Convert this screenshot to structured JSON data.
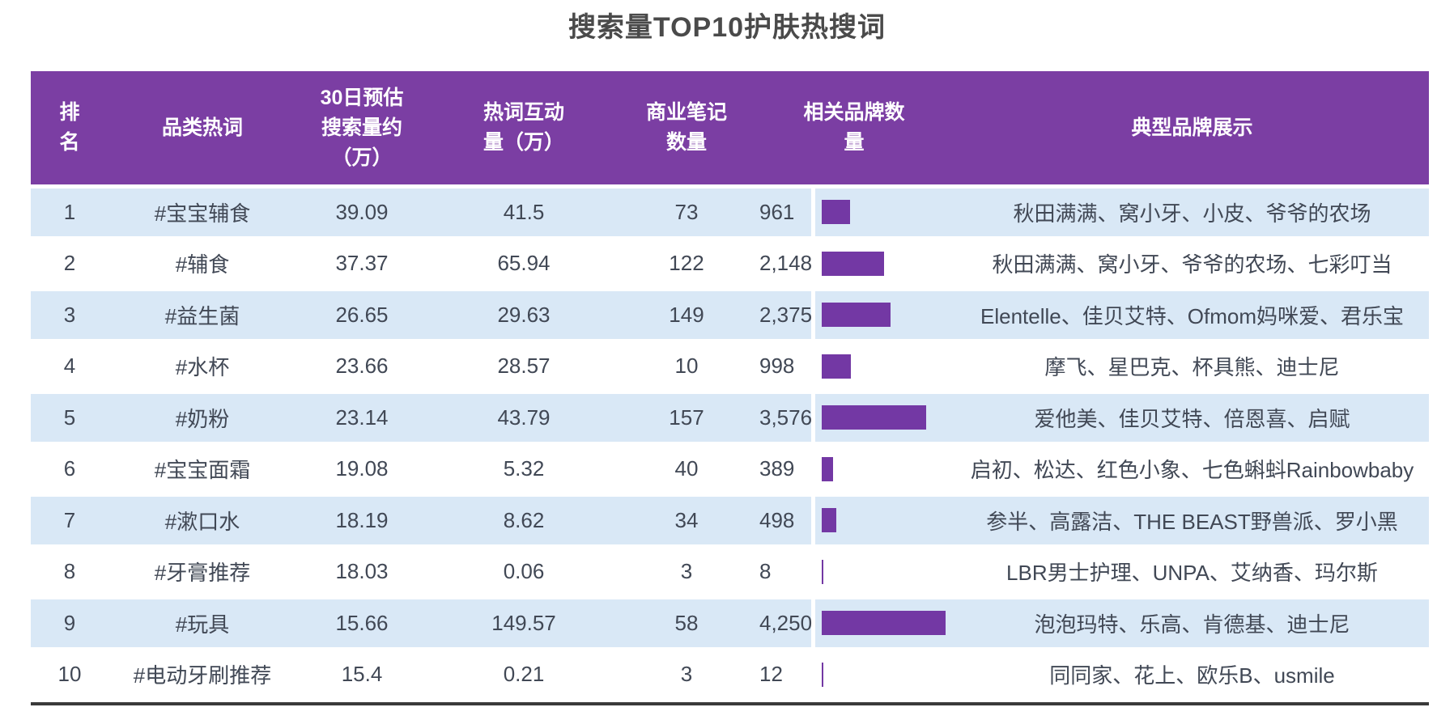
{
  "title": "搜索量TOP10护肤热搜词",
  "colors": {
    "header_bg": "#7b3ea3",
    "bar": "#7338a4",
    "row_alt": "#d9e8f6",
    "row": "#ffffff",
    "text": "#414855",
    "title_text": "#4a4a4a",
    "bottom_rule": "#3a3a3a"
  },
  "table": {
    "columns": [
      {
        "label": "排\n名"
      },
      {
        "label": "品类热词"
      },
      {
        "label": "30日预估\n搜索量约\n（万）"
      },
      {
        "label": "热词互动\n量（万）"
      },
      {
        "label": "商业笔记\n数量"
      },
      {
        "label": "相关品牌数\n量"
      },
      {
        "label": "典型品牌展示"
      }
    ],
    "rows": [
      {
        "rank": "1",
        "keyword": "#宝宝辅食",
        "search_volume": "39.09",
        "interaction": "41.5",
        "notes": "73",
        "brand_count": "961",
        "brands": "秋田满满、窝小牙、小皮、爷爷的农场"
      },
      {
        "rank": "2",
        "keyword": "#辅食",
        "search_volume": "37.37",
        "interaction": "65.94",
        "notes": "122",
        "brand_count": "2,148",
        "brands": "秋田满满、窝小牙、爷爷的农场、七彩叮当"
      },
      {
        "rank": "3",
        "keyword": "#益生菌",
        "search_volume": "26.65",
        "interaction": "29.63",
        "notes": "149",
        "brand_count": "2,375",
        "brands": "Elentelle、佳贝艾特、Ofmom妈咪爱、君乐宝"
      },
      {
        "rank": "4",
        "keyword": "#水杯",
        "search_volume": "23.66",
        "interaction": "28.57",
        "notes": "10",
        "brand_count": "998",
        "brands": "摩飞、星巴克、杯具熊、迪士尼"
      },
      {
        "rank": "5",
        "keyword": "#奶粉",
        "search_volume": "23.14",
        "interaction": "43.79",
        "notes": "157",
        "brand_count": "3,576",
        "brands": "爱他美、佳贝艾特、倍恩喜、启赋"
      },
      {
        "rank": "6",
        "keyword": "#宝宝面霜",
        "search_volume": "19.08",
        "interaction": "5.32",
        "notes": "40",
        "brand_count": "389",
        "brands": "启初、松达、红色小象、七色蝌蚪Rainbowbaby"
      },
      {
        "rank": "7",
        "keyword": "#漱口水",
        "search_volume": "18.19",
        "interaction": "8.62",
        "notes": "34",
        "brand_count": "498",
        "brands": "参半、高露洁、THE BEAST野兽派、罗小黑"
      },
      {
        "rank": "8",
        "keyword": "#牙膏推荐",
        "search_volume": "18.03",
        "interaction": "0.06",
        "notes": "3",
        "brand_count": "8",
        "brands": "LBR男士护理、UNPA、艾纳香、玛尔斯"
      },
      {
        "rank": "9",
        "keyword": "#玩具",
        "search_volume": "15.66",
        "interaction": "149.57",
        "notes": "58",
        "brand_count": "4,250",
        "brands": "泡泡玛特、乐高、肯德基、迪士尼"
      },
      {
        "rank": "10",
        "keyword": "#电动牙刷推荐",
        "search_volume": "15.4",
        "interaction": "0.21",
        "notes": "3",
        "brand_count": "12",
        "brands": "同同家、花上、欧乐B、usmile"
      }
    ]
  },
  "chart_data": {
    "type": "table",
    "title": "搜索量TOP10护肤热搜词",
    "columns": [
      "排名",
      "品类热词",
      "30日预估搜索量约（万）",
      "热词互动量（万）",
      "商业笔记数量",
      "相关品牌数量",
      "典型品牌展示"
    ],
    "rows": [
      [
        1,
        "#宝宝辅食",
        39.09,
        41.5,
        73,
        961,
        "秋田满满、窝小牙、小皮、爷爷的农场"
      ],
      [
        2,
        "#辅食",
        37.37,
        65.94,
        122,
        2148,
        "秋田满满、窝小牙、爷爷的农场、七彩叮当"
      ],
      [
        3,
        "#益生菌",
        26.65,
        29.63,
        149,
        2375,
        "Elentelle、佳贝艾特、Ofmom妈咪爱、君乐宝"
      ],
      [
        4,
        "#水杯",
        23.66,
        28.57,
        10,
        998,
        "摩飞、星巴克、杯具熊、迪士尼"
      ],
      [
        5,
        "#奶粉",
        23.14,
        43.79,
        157,
        3576,
        "爱他美、佳贝艾特、倍恩喜、启赋"
      ],
      [
        6,
        "#宝宝面霜",
        19.08,
        5.32,
        40,
        389,
        "启初、松达、红色小象、七色蝌蚪Rainbowbaby"
      ],
      [
        7,
        "#漱口水",
        18.19,
        8.62,
        34,
        498,
        "参半、高露洁、THE BEAST野兽派、罗小黑"
      ],
      [
        8,
        "#牙膏推荐",
        18.03,
        0.06,
        3,
        8,
        "LBR男士护理、UNPA、艾纳香、玛尔斯"
      ],
      [
        9,
        "#玩具",
        15.66,
        149.57,
        58,
        4250,
        "泡泡玛特、乐高、肯德基、迪士尼"
      ],
      [
        10,
        "#电动牙刷推荐",
        15.4,
        0.21,
        3,
        12,
        "同同家、花上、欧乐B、usmile"
      ]
    ],
    "embedded_bar": {
      "column": "相关品牌数量",
      "values": [
        961,
        2148,
        2375,
        998,
        3576,
        389,
        498,
        8,
        4250,
        12
      ],
      "bar_color": "#7338a4"
    }
  }
}
